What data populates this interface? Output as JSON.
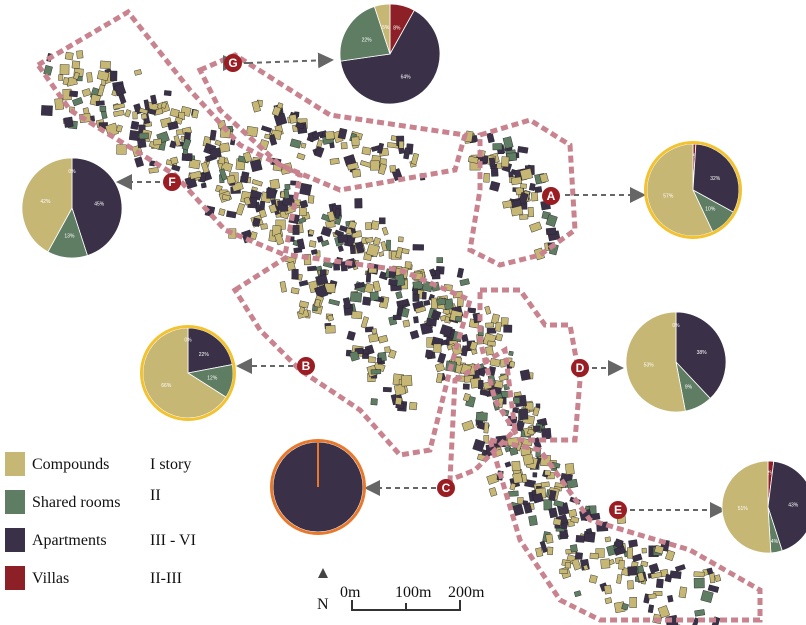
{
  "colors": {
    "compounds": "#c7b775",
    "shared_rooms": "#5f7d63",
    "apartments": "#3a3148",
    "villas": "#8d1f26",
    "zone_border": "#c8838e",
    "marker": "#9b1d24",
    "highlight_yellow": "#f2c230",
    "highlight_orange": "#e8782b"
  },
  "zones": [
    {
      "id": "A",
      "pie": {
        "compounds": 57,
        "shared_rooms": 10,
        "apartments": 32,
        "villas": 1
      },
      "labels": [
        "57%",
        "10%",
        "32%",
        "1%"
      ]
    },
    {
      "id": "B",
      "pie": {
        "compounds": 66,
        "shared_rooms": 12,
        "apartments": 22,
        "villas": 0
      },
      "labels": [
        "66%",
        "12%",
        "22%",
        "0%"
      ]
    },
    {
      "id": "C",
      "pie": {
        "compounds": 0,
        "shared_rooms": 0,
        "apartments": 100,
        "villas": 0
      },
      "labels": []
    },
    {
      "id": "D",
      "pie": {
        "compounds": 53,
        "shared_rooms": 9,
        "apartments": 38,
        "villas": 0
      },
      "labels": [
        "53%",
        "9%",
        "38%",
        "0%"
      ]
    },
    {
      "id": "E",
      "pie": {
        "compounds": 51,
        "shared_rooms": 4,
        "apartments": 43,
        "villas": 2
      },
      "labels": [
        "51%",
        "4%",
        "43%",
        "2%"
      ]
    },
    {
      "id": "F",
      "pie": {
        "compounds": 42,
        "shared_rooms": 13,
        "apartments": 45,
        "villas": 0
      },
      "labels": [
        "42%",
        "13%",
        "45%",
        "0%"
      ]
    },
    {
      "id": "G",
      "pie": {
        "compounds": 5,
        "shared_rooms": 22,
        "apartments": 64,
        "villas": 8
      },
      "labels": [
        "5%",
        "22%",
        "64%",
        "8%"
      ]
    }
  ],
  "legend": [
    {
      "label": "Compounds",
      "stories": "I story",
      "color_key": "compounds"
    },
    {
      "label": "Shared rooms",
      "stories": "II",
      "color_key": "shared_rooms"
    },
    {
      "label": "Apartments",
      "stories": "III - VI",
      "color_key": "apartments"
    },
    {
      "label": "Villas",
      "stories": "II-III",
      "color_key": "villas"
    }
  ],
  "scale_bar": {
    "labels": [
      "0m",
      "100m",
      "200m"
    ]
  },
  "north_label": "N"
}
